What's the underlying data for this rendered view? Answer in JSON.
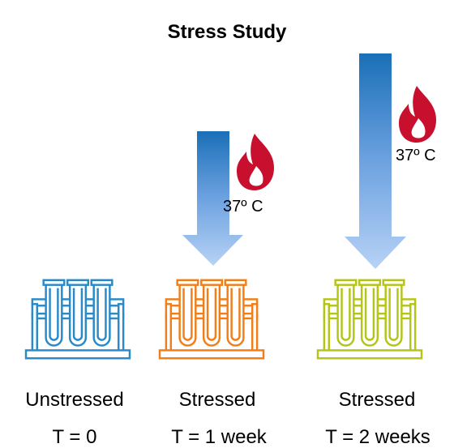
{
  "title": "Stress Study",
  "groups": [
    {
      "label": "Unstressed",
      "time": "T = 0"
    },
    {
      "label": "Stressed",
      "time": "T = 1 week",
      "temperature": "37º C"
    },
    {
      "label": "Stressed",
      "time": "T = 2 weeks",
      "temperature": "37º C"
    }
  ]
}
